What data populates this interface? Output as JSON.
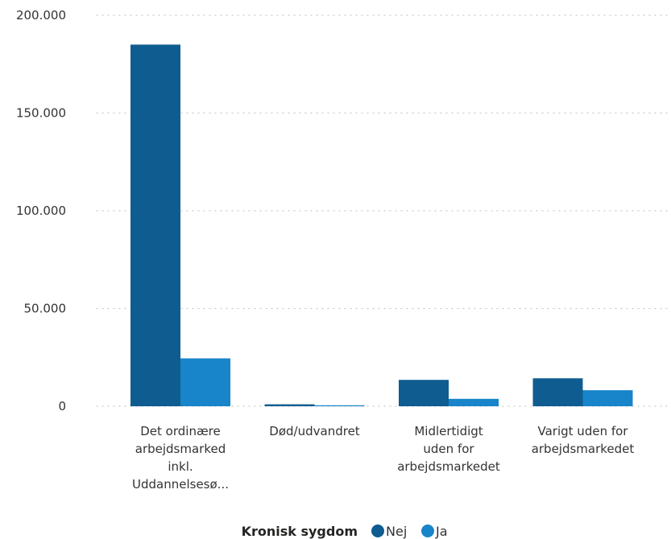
{
  "chart_data": {
    "type": "bar",
    "categories": [
      [
        "Det ordinære",
        "arbejdsmarked",
        "inkl.",
        "Uddannelsesø..."
      ],
      [
        "Død/udvandret"
      ],
      [
        "Midlertidigt",
        "uden for",
        "arbejdsmarkedet"
      ],
      [
        "Varigt uden for",
        "arbejdsmarkedet"
      ]
    ],
    "series": [
      {
        "name": "Nej",
        "color": "#0f5c91",
        "values": [
          185000,
          1000,
          13500,
          14300
        ]
      },
      {
        "name": "Ja",
        "color": "#1884c9",
        "values": [
          24500,
          500,
          3800,
          8200
        ]
      }
    ],
    "y_ticks": [
      0,
      50000,
      100000,
      150000,
      200000
    ],
    "y_tick_labels": [
      "0",
      "50.000",
      "100.000",
      "150.000",
      "200.000"
    ],
    "ylim": [
      0,
      200000
    ],
    "grid": true,
    "legend": {
      "title": "Kronisk sygdom",
      "placement": "bottom-center"
    }
  }
}
